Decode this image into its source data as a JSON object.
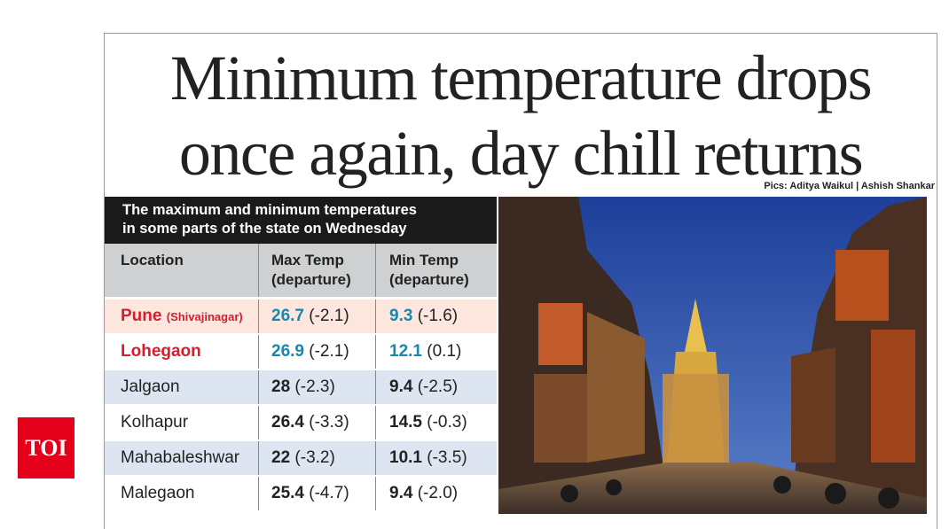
{
  "headline": {
    "line1": "Minimum temperature drops",
    "line2": "once again, day chill returns"
  },
  "credit": "Pics: Aditya Waikul | Ashish Shankar",
  "table": {
    "caption_line1": "The maximum and minimum temperatures",
    "caption_line2": "in some parts of the state on Wednesday",
    "headers": [
      {
        "line1": "Location"
      },
      {
        "line1": "Max Temp",
        "line2": "(departure)"
      },
      {
        "line1": "Min Temp",
        "line2": "(departure)"
      }
    ],
    "rows": [
      {
        "location": "Pune",
        "note": "(Shivajinagar)",
        "max": "26.7",
        "max_dep": "(-2.1)",
        "min": "9.3",
        "min_dep": "(-1.6)",
        "highlight": true
      },
      {
        "location": "Lohegaon",
        "max": "26.9",
        "max_dep": "(-2.1)",
        "min": "12.1",
        "min_dep": "(0.1)",
        "highlight": true
      },
      {
        "location": "Jalgaon",
        "max": "28",
        "max_dep": "(-2.3)",
        "min": "9.4",
        "min_dep": "(-2.5)"
      },
      {
        "location": "Kolhapur",
        "max": "26.4",
        "max_dep": "(-3.3)",
        "min": "14.5",
        "min_dep": "(-0.3)"
      },
      {
        "location": "Mahabaleshwar",
        "max": "22",
        "max_dep": "(-3.2)",
        "min": "10.1",
        "min_dep": "(-3.5)"
      },
      {
        "location": "Malegaon",
        "max": "25.4",
        "max_dep": "(-4.7)",
        "min": "9.4",
        "min_dep": "(-2.0)"
      }
    ]
  },
  "logo": "TOI"
}
